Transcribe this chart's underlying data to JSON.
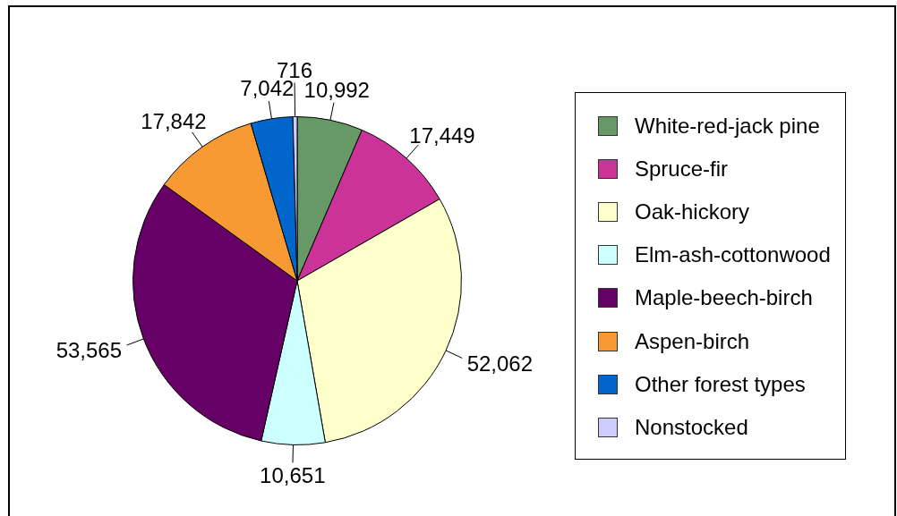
{
  "chart_data": {
    "type": "pie",
    "categories": [
      "White-red-jack pine",
      "Spruce-fir",
      "Oak-hickory",
      "Elm-ash-cottonwood",
      "Maple-beech-birch",
      "Aspen-birch",
      "Other forest types",
      "Nonstocked"
    ],
    "values": [
      10992,
      17449,
      52062,
      10651,
      53565,
      17842,
      7042,
      716
    ],
    "value_labels": [
      "10,992",
      "17,449",
      "52,062",
      "10,651",
      "53,565",
      "17,842",
      "7,042",
      "716"
    ],
    "colors": [
      "#669966",
      "#cc3399",
      "#ffffcc",
      "#ccffff",
      "#660066",
      "#f79a33",
      "#0066cc",
      "#ccccff"
    ],
    "legend": "right"
  }
}
